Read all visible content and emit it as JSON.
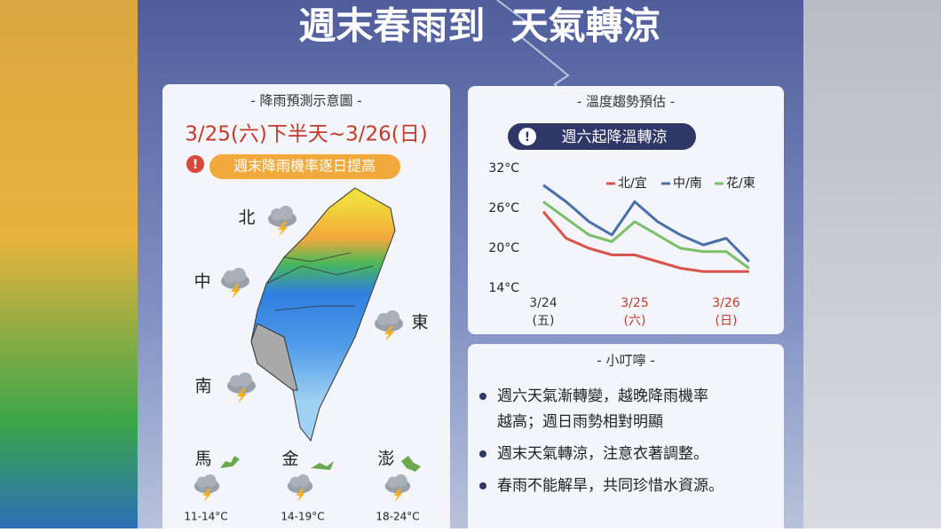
{
  "title": "週末春雨到  天氣轉涼",
  "rain_card": {
    "header": "- 降雨預測示意圖 -",
    "period": "3/25(六)下半天~3/26(日)",
    "alert": "週末降雨機率逐日提高",
    "regions": [
      "北",
      "中",
      "東",
      "南"
    ],
    "islands": [
      {
        "name": "馬",
        "temp": "11-14°C"
      },
      {
        "name": "金",
        "temp": "14-19°C"
      },
      {
        "name": "澎",
        "temp": "18-24°C"
      }
    ]
  },
  "temperature_chart": {
    "type": "line",
    "title": "- 溫度趨勢預估 -",
    "subtitle": "週六起降溫轉涼",
    "categories": [
      "3/24",
      null,
      null,
      null,
      "3/25",
      null,
      null,
      null,
      "3/26",
      null
    ],
    "weekdays": [
      "(五)",
      null,
      null,
      null,
      "(六)",
      null,
      null,
      null,
      "(日)",
      null
    ],
    "ylim": [
      14,
      32
    ],
    "yticks": [
      {
        "value": 32,
        "label": "32°C"
      },
      {
        "value": 26,
        "label": "26°C"
      },
      {
        "value": 20,
        "label": "20°C"
      },
      {
        "value": 14,
        "label": "14°C"
      }
    ],
    "series": [
      {
        "name": "北/宜",
        "color": "#d8544a",
        "values": [
          25.5,
          21.5,
          20,
          19,
          19,
          18,
          17,
          16.5,
          16.5,
          16.5
        ]
      },
      {
        "name": "中/南",
        "color": "#4a6fa8",
        "values": [
          29.5,
          27,
          24,
          22,
          27,
          24,
          22,
          20.5,
          21.5,
          18
        ]
      },
      {
        "name": "花/東",
        "color": "#7cbf6a",
        "values": [
          27,
          24.5,
          22,
          21,
          24,
          22,
          20,
          19.5,
          19.5,
          17
        ]
      }
    ]
  },
  "tips_card": {
    "header": "- 小叮嚀 -",
    "items": [
      [
        "週六天氣漸轉變，越晚降雨機率",
        "越高；週日雨勢相對明顯"
      ],
      [
        "週末天氣轉涼，注意衣著調整。"
      ],
      [
        "春雨不能解旱，共同珍惜水資源。"
      ]
    ]
  }
}
